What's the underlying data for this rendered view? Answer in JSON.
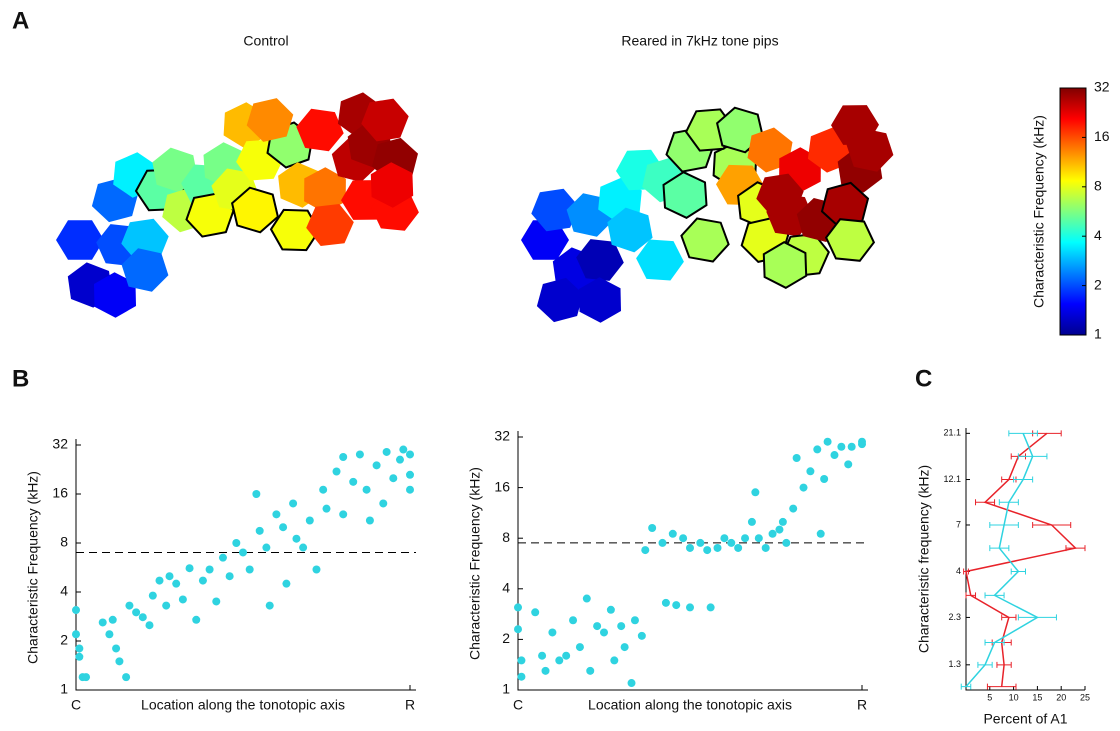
{
  "panel_labels": [
    "A",
    "B",
    "C"
  ],
  "chart_data": [
    {
      "type": "map",
      "title": "Control",
      "values": [
        1.8,
        1.3,
        2.2,
        2.0,
        1.5,
        3,
        2.2,
        3.5,
        5,
        5.5,
        7,
        5,
        5.5,
        8.5,
        8,
        11,
        8.5,
        9,
        6,
        8.5,
        11,
        13,
        20,
        14,
        17,
        26,
        28,
        20,
        29,
        30,
        20,
        22,
        25
      ]
    },
    {
      "type": "map",
      "title": "Reared in 7kHz tone pips",
      "values": [
        1.5,
        1.4,
        1.3,
        1.2,
        1.3,
        2,
        2.5,
        3.5,
        4,
        3,
        4.5,
        3.3,
        5,
        6,
        6.5,
        6.5,
        6.5,
        6,
        14,
        12,
        8,
        8,
        28,
        22,
        7,
        30,
        18,
        28,
        30,
        28,
        7,
        6.5,
        28,
        28
      ]
    },
    {
      "type": "colorbar",
      "label": "Characteristic Frequency (kHz)",
      "ylim": [
        1,
        32
      ],
      "yticks": [
        1,
        2,
        4,
        8,
        16,
        32
      ],
      "log_scale": true
    },
    {
      "type": "scatter",
      "color": "#2fd3e0",
      "x_label": "Location along the tonotopic axis",
      "y_label": "Characteristic Frequency (kHz)",
      "xlim": [
        0,
        1
      ],
      "xticks": [
        {
          "value": 0,
          "label": "C"
        },
        {
          "value": 1,
          "label": "R"
        }
      ],
      "ylim": [
        1,
        32
      ],
      "yticks": [
        1,
        2,
        4,
        8,
        16,
        32
      ],
      "log_scale": true,
      "reference_line": 7,
      "x": [
        0,
        0,
        0.01,
        0.02,
        0.01,
        0.03,
        0.08,
        0.1,
        0.12,
        0.13,
        0.15,
        0.11,
        0.16,
        0.18,
        0.2,
        0.22,
        0.23,
        0.25,
        0.27,
        0.28,
        0.3,
        0.32,
        0.34,
        0.36,
        0.38,
        0.4,
        0.42,
        0.44,
        0.46,
        0.48,
        0.5,
        0.52,
        0.54,
        0.55,
        0.57,
        0.58,
        0.6,
        0.62,
        0.63,
        0.65,
        0.66,
        0.68,
        0.7,
        0.72,
        0.74,
        0.75,
        0.78,
        0.8,
        0.8,
        0.83,
        0.85,
        0.87,
        0.9,
        0.92,
        0.93,
        0.95,
        0.97,
        1,
        1,
        1,
        0.98,
        0.88
      ],
      "values": [
        3.1,
        2.2,
        1.8,
        1.2,
        1.6,
        1.2,
        2.6,
        2.2,
        1.8,
        1.5,
        1.2,
        2.7,
        3.3,
        3.0,
        2.8,
        2.5,
        3.8,
        4.7,
        3.3,
        5,
        4.5,
        3.6,
        5.6,
        2.7,
        4.7,
        5.5,
        3.5,
        6.5,
        5,
        8,
        7,
        5.5,
        16,
        9.5,
        7.5,
        3.3,
        12,
        10,
        4.5,
        14,
        8.5,
        7.5,
        11,
        5.5,
        17,
        13,
        22,
        27,
        12,
        19,
        28,
        17,
        24,
        14,
        29,
        20,
        26,
        28,
        21,
        17,
        30,
        11
      ]
    },
    {
      "type": "scatter",
      "color": "#2fd3e0",
      "x_label": "Location along the tonotopic axis",
      "y_label": "Characteristic Frequency (kHz)",
      "xlim": [
        0,
        1
      ],
      "xticks": [
        {
          "value": 0,
          "label": "C"
        },
        {
          "value": 1,
          "label": "R"
        }
      ],
      "ylim": [
        1,
        32
      ],
      "yticks": [
        1,
        2,
        4,
        8,
        16,
        32
      ],
      "log_scale": true,
      "reference_line": 7.5,
      "x": [
        0,
        0,
        0.01,
        0.01,
        0.05,
        0.07,
        0.08,
        0.1,
        0.12,
        0.14,
        0.16,
        0.18,
        0.2,
        0.21,
        0.23,
        0.25,
        0.27,
        0.28,
        0.3,
        0.31,
        0.33,
        0.34,
        0.36,
        0.37,
        0.39,
        0.42,
        0.43,
        0.45,
        0.46,
        0.48,
        0.5,
        0.5,
        0.53,
        0.55,
        0.56,
        0.58,
        0.6,
        0.62,
        0.64,
        0.66,
        0.68,
        0.69,
        0.7,
        0.72,
        0.74,
        0.76,
        0.77,
        0.78,
        0.8,
        0.81,
        0.83,
        0.85,
        0.87,
        0.88,
        0.89,
        0.9,
        0.92,
        0.94,
        0.96,
        0.97,
        1,
        1
      ],
      "values": [
        3.1,
        2.3,
        1.5,
        1.2,
        2.9,
        1.6,
        1.3,
        2.2,
        1.5,
        1.6,
        2.6,
        1.8,
        3.5,
        1.3,
        2.4,
        2.2,
        3,
        1.5,
        2.4,
        1.8,
        1.1,
        2.6,
        2.1,
        6.8,
        9.2,
        7.5,
        3.3,
        8.5,
        3.2,
        8,
        3.1,
        7,
        7.5,
        6.8,
        3.1,
        7,
        8,
        7.5,
        7,
        8,
        10,
        15,
        8,
        7,
        8.5,
        9,
        10,
        7.5,
        12,
        24,
        16,
        20,
        27,
        8.5,
        18,
        30,
        25,
        28,
        22,
        28,
        30,
        29
      ]
    },
    {
      "type": "line",
      "orientation": "horizontal",
      "x_label": "Percent of A1",
      "y_label": "Characteristic frequency (kHz)",
      "xlim": [
        0,
        25
      ],
      "xticks": [
        5,
        10,
        15,
        20,
        25
      ],
      "ylim": [
        0.96,
        22.5
      ],
      "yticks": [
        1.3,
        2.3,
        4,
        7,
        12.1,
        21.1
      ],
      "log_scale": true,
      "y": [
        1.0,
        1.3,
        1.7,
        2.3,
        3,
        4,
        5.3,
        7,
        9.2,
        12.1,
        16,
        21.1
      ],
      "series": [
        {
          "color": "#e8232a",
          "values": [
            7.5,
            8,
            7.5,
            9,
            1,
            0,
            23,
            18,
            4,
            9,
            11,
            17
          ],
          "errors": [
            3,
            1.5,
            2,
            1.5,
            1,
            0.5,
            2,
            4,
            2,
            1.5,
            1.5,
            3
          ]
        },
        {
          "color": "#2fd3e0",
          "values": [
            0,
            4,
            6,
            15,
            6,
            11,
            7,
            8,
            9,
            12,
            14,
            12
          ],
          "errors": [
            1,
            1.5,
            2,
            4,
            2,
            1.5,
            2,
            3,
            2,
            2,
            3,
            3
          ]
        }
      ]
    }
  ]
}
